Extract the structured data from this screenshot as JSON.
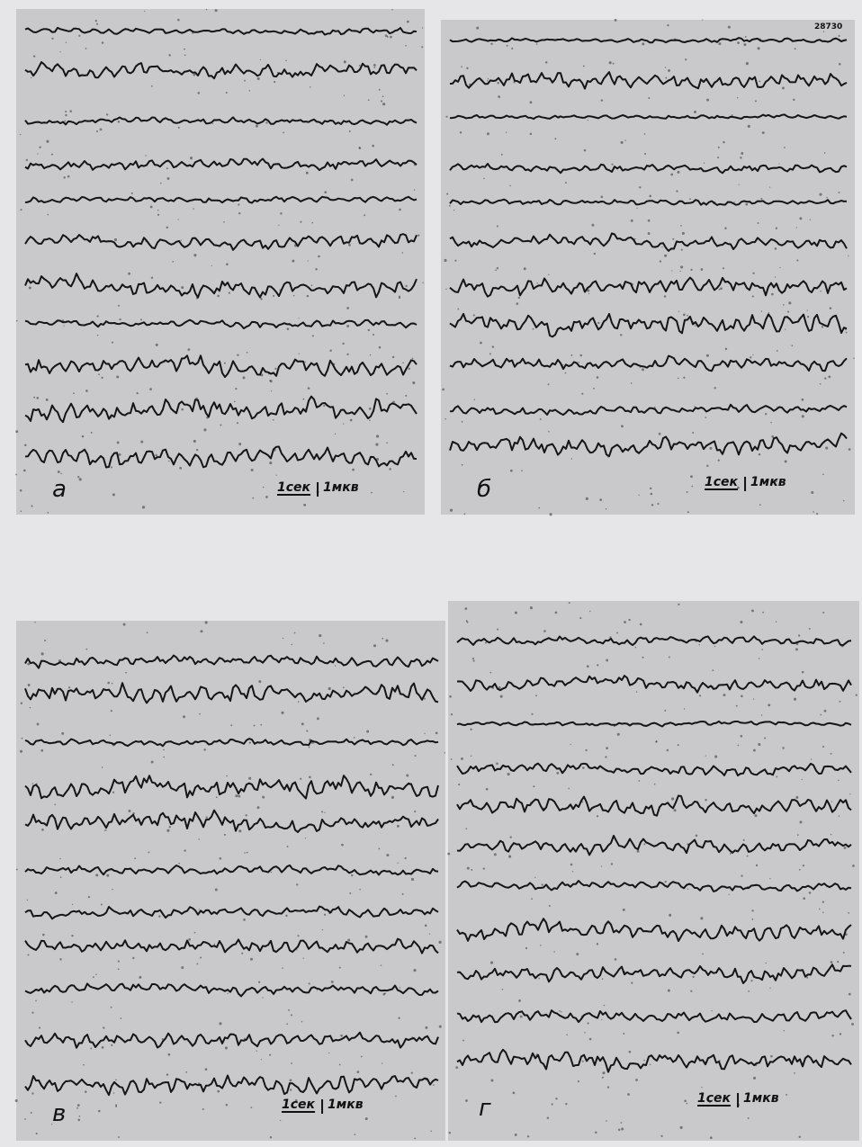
{
  "figure": {
    "stamp": "28730",
    "panels": [
      {
        "label": "а",
        "time_scale": "1сек",
        "amp_scale": "1мкв"
      },
      {
        "label": "б",
        "time_scale": "1сек",
        "amp_scale": "1мкв"
      },
      {
        "label": "в",
        "time_scale": "1сек",
        "amp_scale": "1мкв"
      },
      {
        "label": "г",
        "time_scale": "1сек",
        "amp_scale": "1мкв"
      }
    ]
  }
}
